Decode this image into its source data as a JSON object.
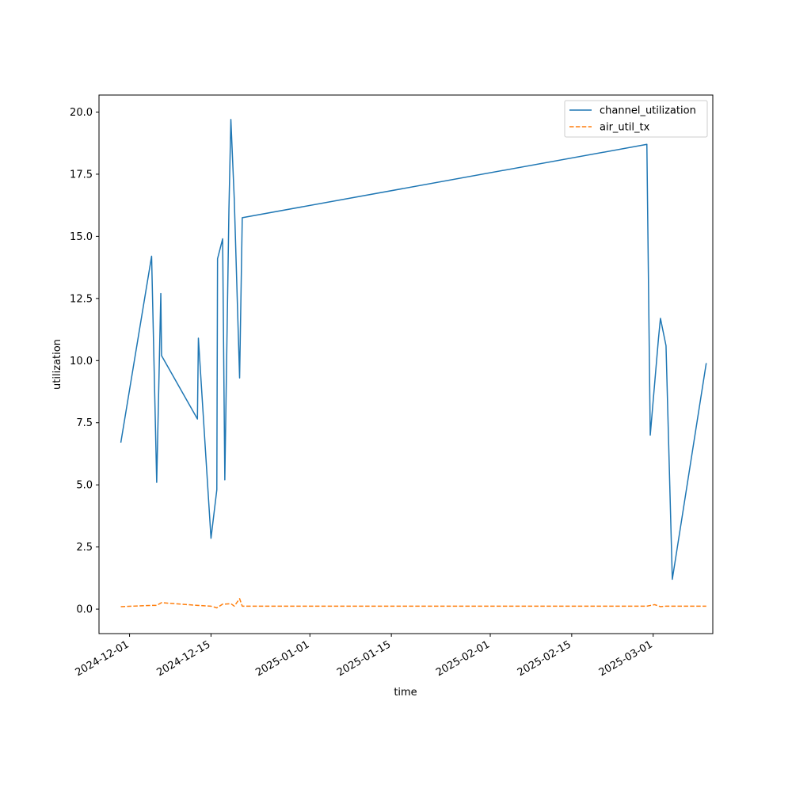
{
  "chart_data": {
    "type": "line",
    "title": "",
    "xlabel": "time",
    "ylabel": "utilization",
    "xlim": [
      "2024-11-25T18:00",
      "2025-03-11T06:00"
    ],
    "ylim": [
      -0.985,
      20.685
    ],
    "x_ticks": [
      {
        "date": "2024-12-01",
        "label": "2024-12-01"
      },
      {
        "date": "2024-12-15",
        "label": "2024-12-15"
      },
      {
        "date": "2025-01-01",
        "label": "2025-01-01"
      },
      {
        "date": "2025-01-15",
        "label": "2025-01-15"
      },
      {
        "date": "2025-02-01",
        "label": "2025-02-01"
      },
      {
        "date": "2025-02-15",
        "label": "2025-02-15"
      },
      {
        "date": "2025-03-01",
        "label": "2025-03-01"
      }
    ],
    "y_ticks": [
      {
        "value": 0.0,
        "label": "0.0"
      },
      {
        "value": 2.5,
        "label": "2.5"
      },
      {
        "value": 5.0,
        "label": "5.0"
      },
      {
        "value": 7.5,
        "label": "7.5"
      },
      {
        "value": 10.0,
        "label": "10.0"
      },
      {
        "value": 12.5,
        "label": "12.5"
      },
      {
        "value": 15.0,
        "label": "15.0"
      },
      {
        "value": 17.5,
        "label": "17.5"
      },
      {
        "value": 20.0,
        "label": "20.0"
      }
    ],
    "grid": false,
    "legend_position": "top-right",
    "series": [
      {
        "name": "channel_utilization",
        "color": "#1f77b4",
        "style": "solid",
        "points": [
          {
            "x": "2024-11-29T12:00",
            "y": 6.7
          },
          {
            "x": "2024-12-04T19:00",
            "y": 14.2
          },
          {
            "x": "2024-12-05T16:00",
            "y": 5.1
          },
          {
            "x": "2024-12-06T09:00",
            "y": 12.7
          },
          {
            "x": "2024-12-06T12:00",
            "y": 10.2
          },
          {
            "x": "2024-12-12T16:00",
            "y": 7.65
          },
          {
            "x": "2024-12-12T20:00",
            "y": 10.9
          },
          {
            "x": "2024-12-15T00:00",
            "y": 2.85
          },
          {
            "x": "2024-12-16T00:00",
            "y": 4.8
          },
          {
            "x": "2024-12-16T03:00",
            "y": 14.1
          },
          {
            "x": "2024-12-17T00:00",
            "y": 14.9
          },
          {
            "x": "2024-12-17T09:00",
            "y": 5.2
          },
          {
            "x": "2024-12-18T02:00",
            "y": 16.1
          },
          {
            "x": "2024-12-18T10:00",
            "y": 19.7
          },
          {
            "x": "2024-12-19T00:00",
            "y": 16.5
          },
          {
            "x": "2024-12-19T22:00",
            "y": 9.3
          },
          {
            "x": "2024-12-20T09:00",
            "y": 15.75
          },
          {
            "x": "2025-02-27T22:00",
            "y": 18.7
          },
          {
            "x": "2025-02-28T12:00",
            "y": 7.0
          },
          {
            "x": "2025-03-01T22:00",
            "y": 10.9
          },
          {
            "x": "2025-03-02T06:00",
            "y": 11.7
          },
          {
            "x": "2025-03-03T05:00",
            "y": 10.6
          },
          {
            "x": "2025-03-04T07:00",
            "y": 1.2
          },
          {
            "x": "2025-03-10T03:00",
            "y": 9.9
          }
        ]
      },
      {
        "name": "air_util_tx",
        "color": "#ff7f0e",
        "style": "dashed",
        "points": [
          {
            "x": "2024-11-29T12:00",
            "y": 0.1
          },
          {
            "x": "2024-12-04T19:00",
            "y": 0.15
          },
          {
            "x": "2024-12-05T16:00",
            "y": 0.15
          },
          {
            "x": "2024-12-06T12:00",
            "y": 0.26
          },
          {
            "x": "2024-12-12T16:00",
            "y": 0.15
          },
          {
            "x": "2024-12-15T00:00",
            "y": 0.12
          },
          {
            "x": "2024-12-16T00:00",
            "y": 0.05
          },
          {
            "x": "2024-12-17T00:00",
            "y": 0.2
          },
          {
            "x": "2024-12-17T09:00",
            "y": 0.2
          },
          {
            "x": "2024-12-18T10:00",
            "y": 0.22
          },
          {
            "x": "2024-12-19T00:00",
            "y": 0.12
          },
          {
            "x": "2024-12-19T22:00",
            "y": 0.42
          },
          {
            "x": "2024-12-20T09:00",
            "y": 0.12
          },
          {
            "x": "2025-02-27T22:00",
            "y": 0.12
          },
          {
            "x": "2025-03-01T06:00",
            "y": 0.18
          },
          {
            "x": "2025-03-02T06:00",
            "y": 0.1
          },
          {
            "x": "2025-03-03T05:00",
            "y": 0.12
          },
          {
            "x": "2025-03-10T03:00",
            "y": 0.12
          }
        ]
      }
    ]
  }
}
